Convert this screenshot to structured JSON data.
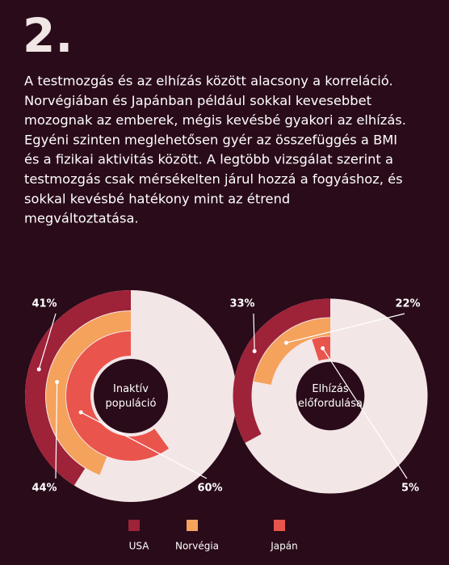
{
  "heading": "2.",
  "paragraph_lines": [
    "A testmozgás és az elhízás között alacsony a korreláció.",
    "Norvégiában és Japánban például sokkal kevesebbet",
    "mozognak az emberek, mégis kevésbé gyakori az elhízás.",
    "Egyéni szinten meglehetősen  gyér az összefüggés a BMI",
    "és a fizikai aktivitás között. A legtöbb vizsgálat szerint a",
    "testmozgás csak mérsékelten  járul hozzá a fogyáshoz, és",
    "sokkal kevésbé  hatékony mint az étrend",
    "megváltoztatása."
  ],
  "chart_data": [
    {
      "type": "radial-donut",
      "title": "Inaktív populáció",
      "categories": [
        "USA",
        "Norvégia",
        "Japán"
      ],
      "values": [
        41,
        44,
        60
      ],
      "value_labels": [
        "41%",
        "44%",
        "60%"
      ],
      "colors": [
        "#9e2238",
        "#f5a25d",
        "#e9544d"
      ],
      "track_color": "#f3e6e6"
    },
    {
      "type": "radial-donut",
      "title": "Elhízás előfordulása",
      "categories": [
        "USA",
        "Norvégia",
        "Japán"
      ],
      "values": [
        33,
        22,
        5
      ],
      "value_labels": [
        "33%",
        "22%",
        "5%"
      ],
      "colors": [
        "#9e2238",
        "#f5a25d",
        "#e9544d"
      ],
      "track_color": "#f3e6e6"
    }
  ]
}
